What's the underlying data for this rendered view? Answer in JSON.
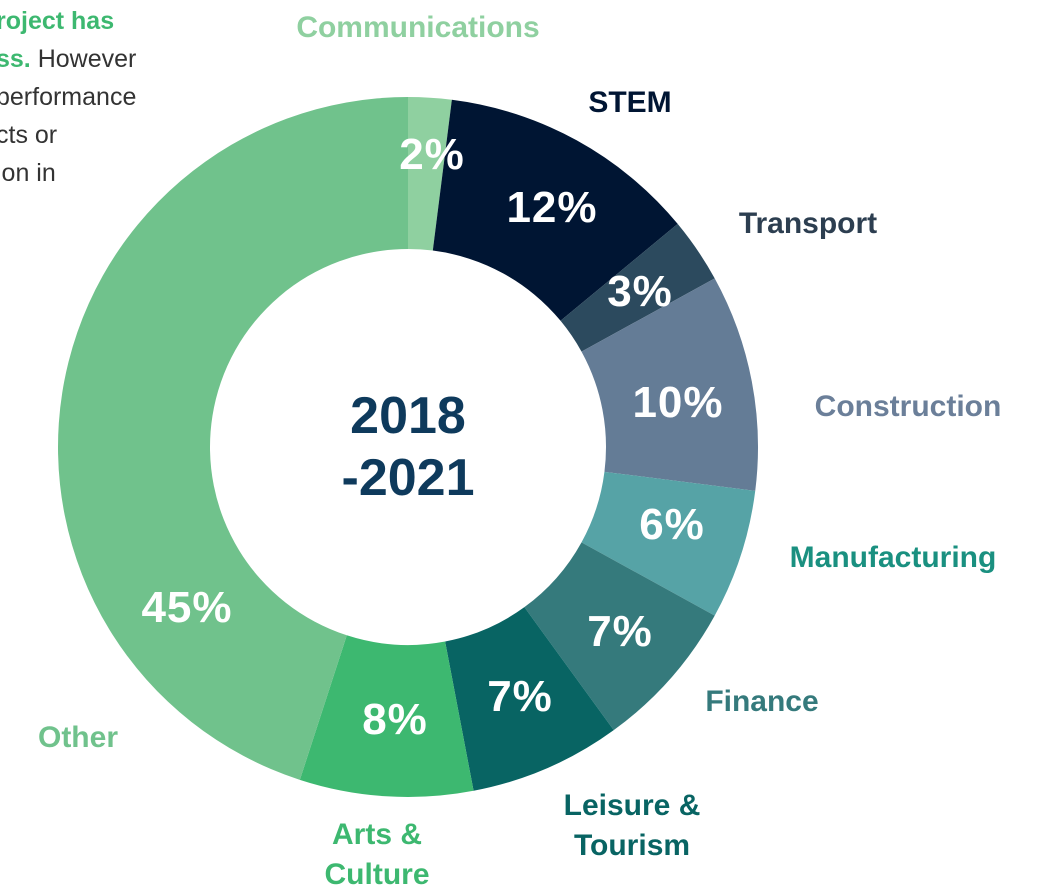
{
  "intro": {
    "lines": [
      {
        "highlight": "roject has"
      },
      {
        "highlight": "ss.",
        "text": " However"
      },
      {
        "text": "performance"
      },
      {
        "text": "cts or"
      },
      {
        "text": "ion in"
      }
    ]
  },
  "chart_data": {
    "type": "donut",
    "center_text": "2018 -2021",
    "categories": [
      "Communications",
      "STEM",
      "Transport",
      "Construction",
      "Manufacturing",
      "Finance",
      "Leisure & Tourism",
      "Arts & Culture",
      "Other"
    ],
    "values": [
      2,
      12,
      3,
      10,
      6,
      7,
      7,
      8,
      45
    ],
    "value_labels": [
      "2%",
      "12%",
      "3%",
      "10%",
      "6%",
      "7%",
      "7%",
      "8%",
      "45%"
    ],
    "colors": [
      "#8fd0a0",
      "#001533",
      "#2c4a5e",
      "#647c96",
      "#56a3a6",
      "#357a7c",
      "#086463",
      "#3db870",
      "#70c28c"
    ],
    "label_colors": [
      "#8fd0a0",
      "#001533",
      "#2c3e50",
      "#6b7f99",
      "#1a9080",
      "#357a7c",
      "#086463",
      "#3db870",
      "#70c28c"
    ]
  }
}
